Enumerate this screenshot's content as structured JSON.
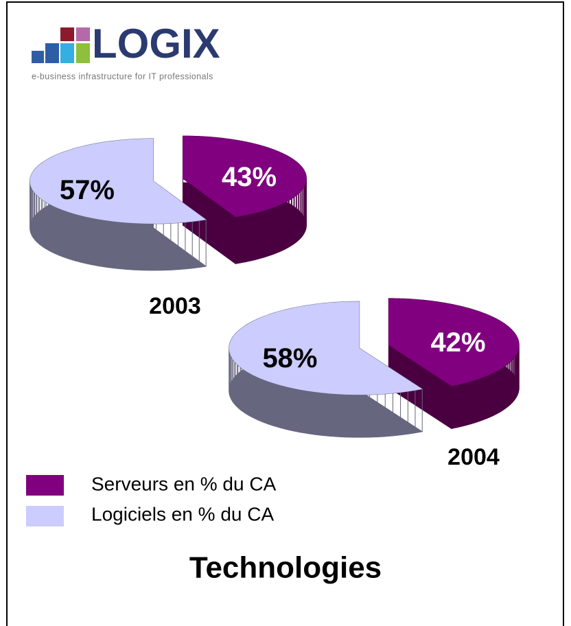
{
  "logo": {
    "name": "LOGIX",
    "tagline": "e-business infrastructure for IT professionals"
  },
  "chart_data": [
    {
      "type": "pie",
      "title": "2003",
      "categories": [
        "Serveurs en % du CA",
        "Logiciels en % du CA"
      ],
      "colors": [
        "#800080",
        "#ccccff"
      ],
      "values": [
        43,
        57
      ],
      "value_labels": [
        "43%",
        "57%"
      ]
    },
    {
      "type": "pie",
      "title": "2004",
      "values": [
        42,
        58
      ],
      "value_labels": [
        "42%",
        "58%"
      ]
    }
  ],
  "heading": "Technologies"
}
